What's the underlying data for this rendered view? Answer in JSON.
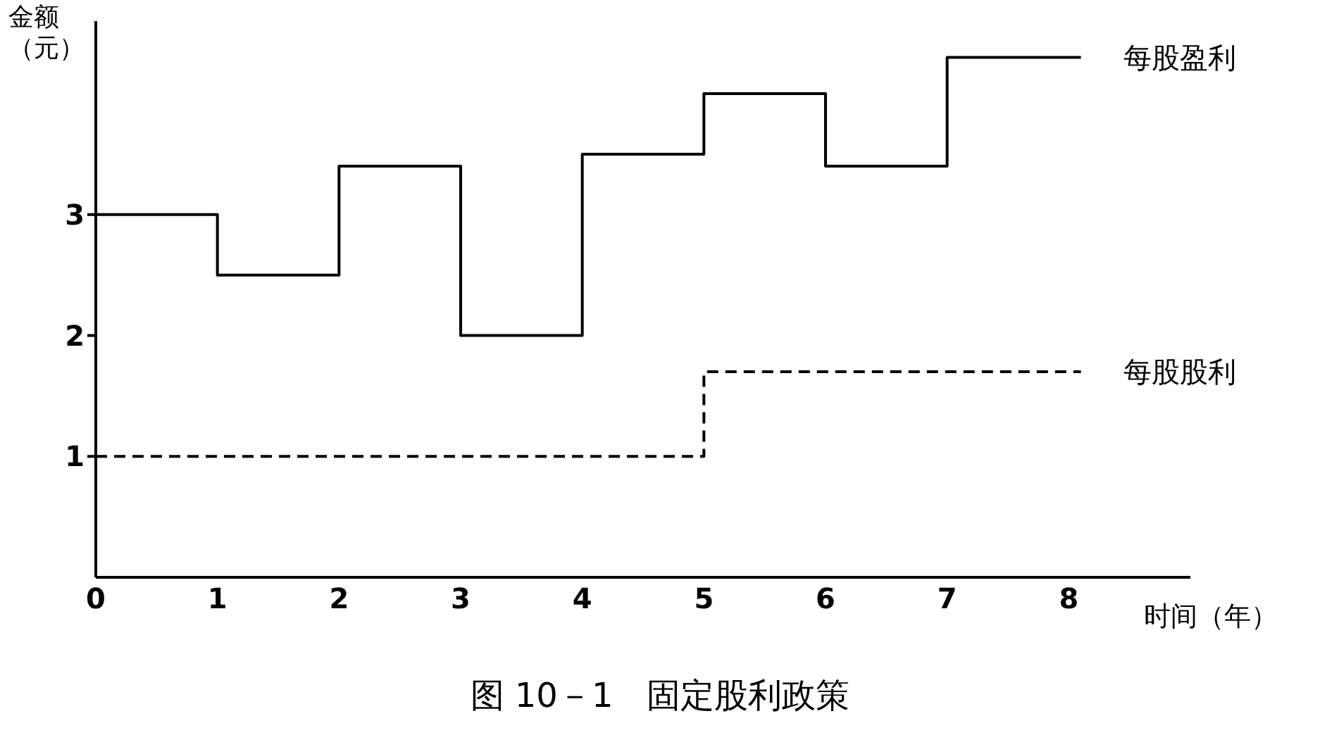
{
  "chart_data": {
    "type": "step",
    "title": "图 10－1　固定股利政策",
    "xlabel": "时间（年）",
    "ylabel": "金额（元）",
    "series": [
      {
        "name": "每股盈利",
        "color": "#000000",
        "line_style": "solid",
        "x": [
          0,
          1,
          2,
          3,
          4,
          5,
          6,
          7,
          8.1
        ],
        "values": [
          3,
          2.5,
          3.4,
          2,
          3.5,
          4,
          3.4,
          4.3,
          4.3
        ]
      },
      {
        "name": "每股股利",
        "color": "#000000",
        "line_style": "dashed",
        "x": [
          0,
          5,
          8.1
        ],
        "values": [
          1,
          1.7,
          1.7
        ]
      }
    ],
    "xlim": [
      0,
      9
    ],
    "xticks": [
      0,
      1,
      2,
      3,
      4,
      5,
      6,
      7,
      8
    ],
    "ylim": [
      0,
      4.6
    ],
    "yticks": [
      1,
      2,
      3
    ],
    "grid": false,
    "marker": "none"
  }
}
